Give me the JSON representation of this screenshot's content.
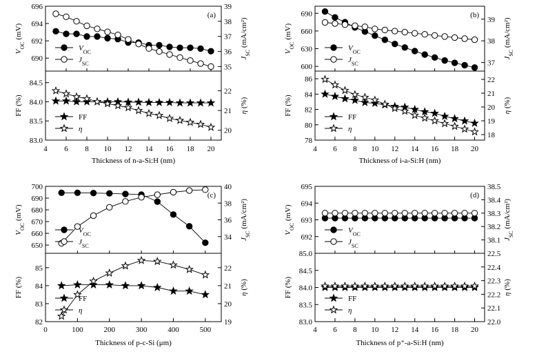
{
  "chart_data": [
    {
      "type": "line",
      "panel": "(a)",
      "xlabel": "Thickness of n-a-Si:H (nm)",
      "x": [
        5,
        6,
        7,
        8,
        9,
        10,
        11,
        12,
        13,
        14,
        15,
        16,
        17,
        18,
        19,
        20
      ],
      "xlim": [
        4,
        21
      ],
      "xticks": [
        4,
        6,
        8,
        10,
        12,
        14,
        16,
        18,
        20
      ],
      "top": {
        "left": {
          "label": "V_OC (mV)",
          "ylim": [
            688.5,
            696
          ],
          "ticks": [
            690,
            692,
            694,
            696
          ]
        },
        "right": {
          "label": "J_SC (mA/cm²)",
          "ylim": [
            34.7,
            39
          ],
          "ticks": [
            35,
            36,
            37,
            38,
            39
          ]
        },
        "series": [
          {
            "name": "V_OC",
            "axis": "left",
            "marker": "filled-circle",
            "values": [
              693.1,
              692.8,
              692.8,
              692.5,
              692.5,
              692.3,
              692.2,
              691.8,
              691.8,
              691.5,
              691.5,
              691.3,
              691.2,
              691.2,
              691.1,
              690.8
            ]
          },
          {
            "name": "J_SC",
            "axis": "right",
            "marker": "open-circle",
            "values": [
              38.5,
              38.3,
              38.0,
              37.7,
              37.5,
              37.3,
              37.1,
              36.8,
              36.5,
              36.2,
              36.0,
              35.8,
              35.6,
              35.4,
              35.2,
              35.0
            ]
          }
        ]
      },
      "bottom": {
        "left": {
          "label": "FF (%)",
          "ylim": [
            83.0,
            84.8
          ],
          "ticks": [
            83.0,
            83.5,
            84.0,
            84.5
          ]
        },
        "right": {
          "label": "η (%)",
          "ylim": [
            19.5,
            23
          ],
          "ticks": [
            20,
            21,
            22
          ]
        },
        "series": [
          {
            "name": "FF",
            "axis": "left",
            "marker": "filled-star",
            "values": [
              84.02,
              84.02,
              84.0,
              84.0,
              84.0,
              84.0,
              84.0,
              83.99,
              83.99,
              83.98,
              83.98,
              83.98,
              83.97,
              83.97,
              83.97,
              83.97
            ]
          },
          {
            "name": "η",
            "axis": "right",
            "marker": "open-star",
            "values": [
              22.0,
              21.85,
              21.7,
              21.6,
              21.45,
              21.35,
              21.25,
              21.15,
              21.0,
              20.85,
              20.75,
              20.6,
              20.5,
              20.4,
              20.3,
              20.15
            ]
          }
        ]
      }
    },
    {
      "type": "line",
      "panel": "(b)",
      "xlabel": "Thickness of i-a-Si:H (nm)",
      "x": [
        5,
        6,
        7,
        8,
        9,
        10,
        11,
        12,
        13,
        14,
        15,
        16,
        17,
        18,
        19,
        20
      ],
      "xlim": [
        4,
        21
      ],
      "xticks": [
        4,
        6,
        8,
        10,
        12,
        14,
        16,
        18,
        20
      ],
      "top": {
        "left": {
          "label": "V_OC (mV)",
          "ylim": [
            592,
            702
          ],
          "ticks": [
            600,
            630,
            660,
            690
          ]
        },
        "right": {
          "label": "J_SC (mA/cm²)",
          "ylim": [
            36.6,
            39.6
          ],
          "ticks": [
            37,
            38,
            39
          ]
        },
        "series": [
          {
            "name": "V_OC",
            "axis": "left",
            "marker": "filled-circle",
            "values": [
              693,
              683,
              675,
              666,
              659,
              652,
              645,
              638,
              632,
              626,
              620,
              615,
              610,
              606,
              602,
              598
            ]
          },
          {
            "name": "J_SC",
            "axis": "right",
            "marker": "open-circle",
            "values": [
              38.85,
              38.8,
              38.75,
              38.7,
              38.65,
              38.55,
              38.5,
              38.45,
              38.4,
              38.35,
              38.3,
              38.25,
              38.2,
              38.15,
              38.1,
              38.05
            ]
          }
        ]
      },
      "bottom": {
        "left": {
          "label": "FF (%)",
          "ylim": [
            78,
            87
          ],
          "ticks": [
            78,
            80,
            82,
            84,
            86
          ]
        },
        "right": {
          "label": "η (%)",
          "ylim": [
            17.6,
            22.6
          ],
          "ticks": [
            18,
            19,
            20,
            21,
            22
          ]
        },
        "series": [
          {
            "name": "FF",
            "axis": "left",
            "marker": "filled-star",
            "values": [
              84.0,
              83.7,
              83.4,
              83.2,
              82.9,
              82.8,
              82.6,
              82.4,
              82.3,
              82.0,
              81.7,
              81.5,
              81.1,
              80.8,
              80.5,
              80.2
            ]
          },
          {
            "name": "η",
            "axis": "right",
            "marker": "open-star",
            "values": [
              22.0,
              21.6,
              21.2,
              20.9,
              20.7,
              20.5,
              20.2,
              19.9,
              19.7,
              19.4,
              19.2,
              19.0,
              18.8,
              18.6,
              18.4,
              18.2
            ]
          }
        ]
      }
    },
    {
      "type": "line",
      "panel": "(c)",
      "xlabel": "Thickness of p-c-Si (μm)",
      "x": [
        50,
        100,
        150,
        200,
        250,
        300,
        350,
        400,
        450,
        500
      ],
      "xlim": [
        0,
        550
      ],
      "xticks": [
        0,
        100,
        200,
        300,
        400,
        500
      ],
      "top": {
        "left": {
          "label": "V_OC (mV)",
          "ylim": [
            643,
            700
          ],
          "ticks": [
            650,
            660,
            670,
            680,
            690,
            700
          ]
        },
        "right": {
          "label": "J_SC (mA/cm²)",
          "ylim": [
            32,
            40
          ],
          "ticks": [
            34,
            36,
            38,
            40
          ]
        },
        "series": [
          {
            "name": "V_OC",
            "axis": "left",
            "marker": "filled-circle",
            "values": [
              694.5,
              694.5,
              694.3,
              694.0,
              693.5,
              693.0,
              687.0,
              676.0,
              666.0,
              652.0
            ]
          },
          {
            "name": "J_SC",
            "axis": "right",
            "marker": "open-circle",
            "values": [
              33.2,
              35.2,
              36.5,
              37.5,
              38.2,
              38.7,
              39.0,
              39.3,
              39.5,
              39.6
            ]
          }
        ]
      },
      "bottom": {
        "left": {
          "label": "FF (%)",
          "ylim": [
            82,
            85.8
          ],
          "ticks": [
            82,
            83,
            84,
            85
          ]
        },
        "right": {
          "label": "η (%)",
          "ylim": [
            19,
            22.8
          ],
          "ticks": [
            19,
            20,
            21,
            22
          ]
        },
        "series": [
          {
            "name": "FF",
            "axis": "left",
            "marker": "filled-star",
            "values": [
              84.0,
              84.05,
              84.05,
              84.05,
              84.0,
              84.0,
              83.9,
              83.7,
              83.7,
              83.5
            ]
          },
          {
            "name": "η",
            "axis": "right",
            "marker": "open-star",
            "values": [
              19.3,
              20.5,
              21.25,
              21.7,
              22.1,
              22.4,
              22.35,
              22.15,
              21.9,
              21.6
            ]
          }
        ]
      }
    },
    {
      "type": "line",
      "panel": "(d)",
      "xlabel": "Thickness of p⁺-a-Si:H (nm)",
      "x": [
        5,
        6,
        7,
        8,
        9,
        10,
        11,
        12,
        13,
        14,
        15,
        16,
        17,
        18,
        19,
        20
      ],
      "xlim": [
        4,
        21
      ],
      "xticks": [
        4,
        6,
        8,
        10,
        12,
        14,
        16,
        18,
        20
      ],
      "top": {
        "left": {
          "label": "V_OC (mV)",
          "ylim": [
            691,
            695
          ],
          "ticks": [
            692,
            693,
            694,
            695
          ]
        },
        "right": {
          "label": "J_SC (mA/cm²)",
          "ylim": [
            38.0,
            38.5
          ],
          "ticks": [
            38.1,
            38.2,
            38.3,
            38.4,
            38.5
          ]
        },
        "series": [
          {
            "name": "V_OC",
            "axis": "left",
            "marker": "filled-circle",
            "values": [
              693.1,
              693.1,
              693.1,
              693.1,
              693.1,
              693.1,
              693.1,
              693.1,
              693.1,
              693.1,
              693.1,
              693.1,
              693.1,
              693.1,
              693.1,
              693.1
            ]
          },
          {
            "name": "J_SC",
            "axis": "right",
            "marker": "open-circle",
            "values": [
              38.3,
              38.3,
              38.3,
              38.3,
              38.3,
              38.3,
              38.3,
              38.3,
              38.3,
              38.3,
              38.3,
              38.3,
              38.3,
              38.3,
              38.3,
              38.3
            ]
          }
        ]
      },
      "bottom": {
        "left": {
          "label": "FF (%)",
          "ylim": [
            83.0,
            85.0
          ],
          "ticks": [
            83.0,
            83.5,
            84.0,
            84.5,
            85.0
          ]
        },
        "right": {
          "label": "η (%)",
          "ylim": [
            22.0,
            22.5
          ],
          "ticks": [
            22.0,
            22.1,
            22.2,
            22.3,
            22.4,
            22.5
          ]
        },
        "series": [
          {
            "name": "FF",
            "axis": "left",
            "marker": "filled-star",
            "values": [
              84.0,
              84.0,
              84.0,
              84.0,
              84.0,
              84.0,
              84.0,
              84.0,
              84.0,
              84.0,
              84.0,
              84.0,
              84.0,
              84.0,
              84.0,
              84.0
            ]
          },
          {
            "name": "η",
            "axis": "right",
            "marker": "open-star",
            "values": [
              22.26,
              22.26,
              22.26,
              22.26,
              22.26,
              22.26,
              22.26,
              22.26,
              22.26,
              22.26,
              22.26,
              22.26,
              22.26,
              22.26,
              22.26,
              22.26
            ]
          }
        ]
      }
    }
  ]
}
